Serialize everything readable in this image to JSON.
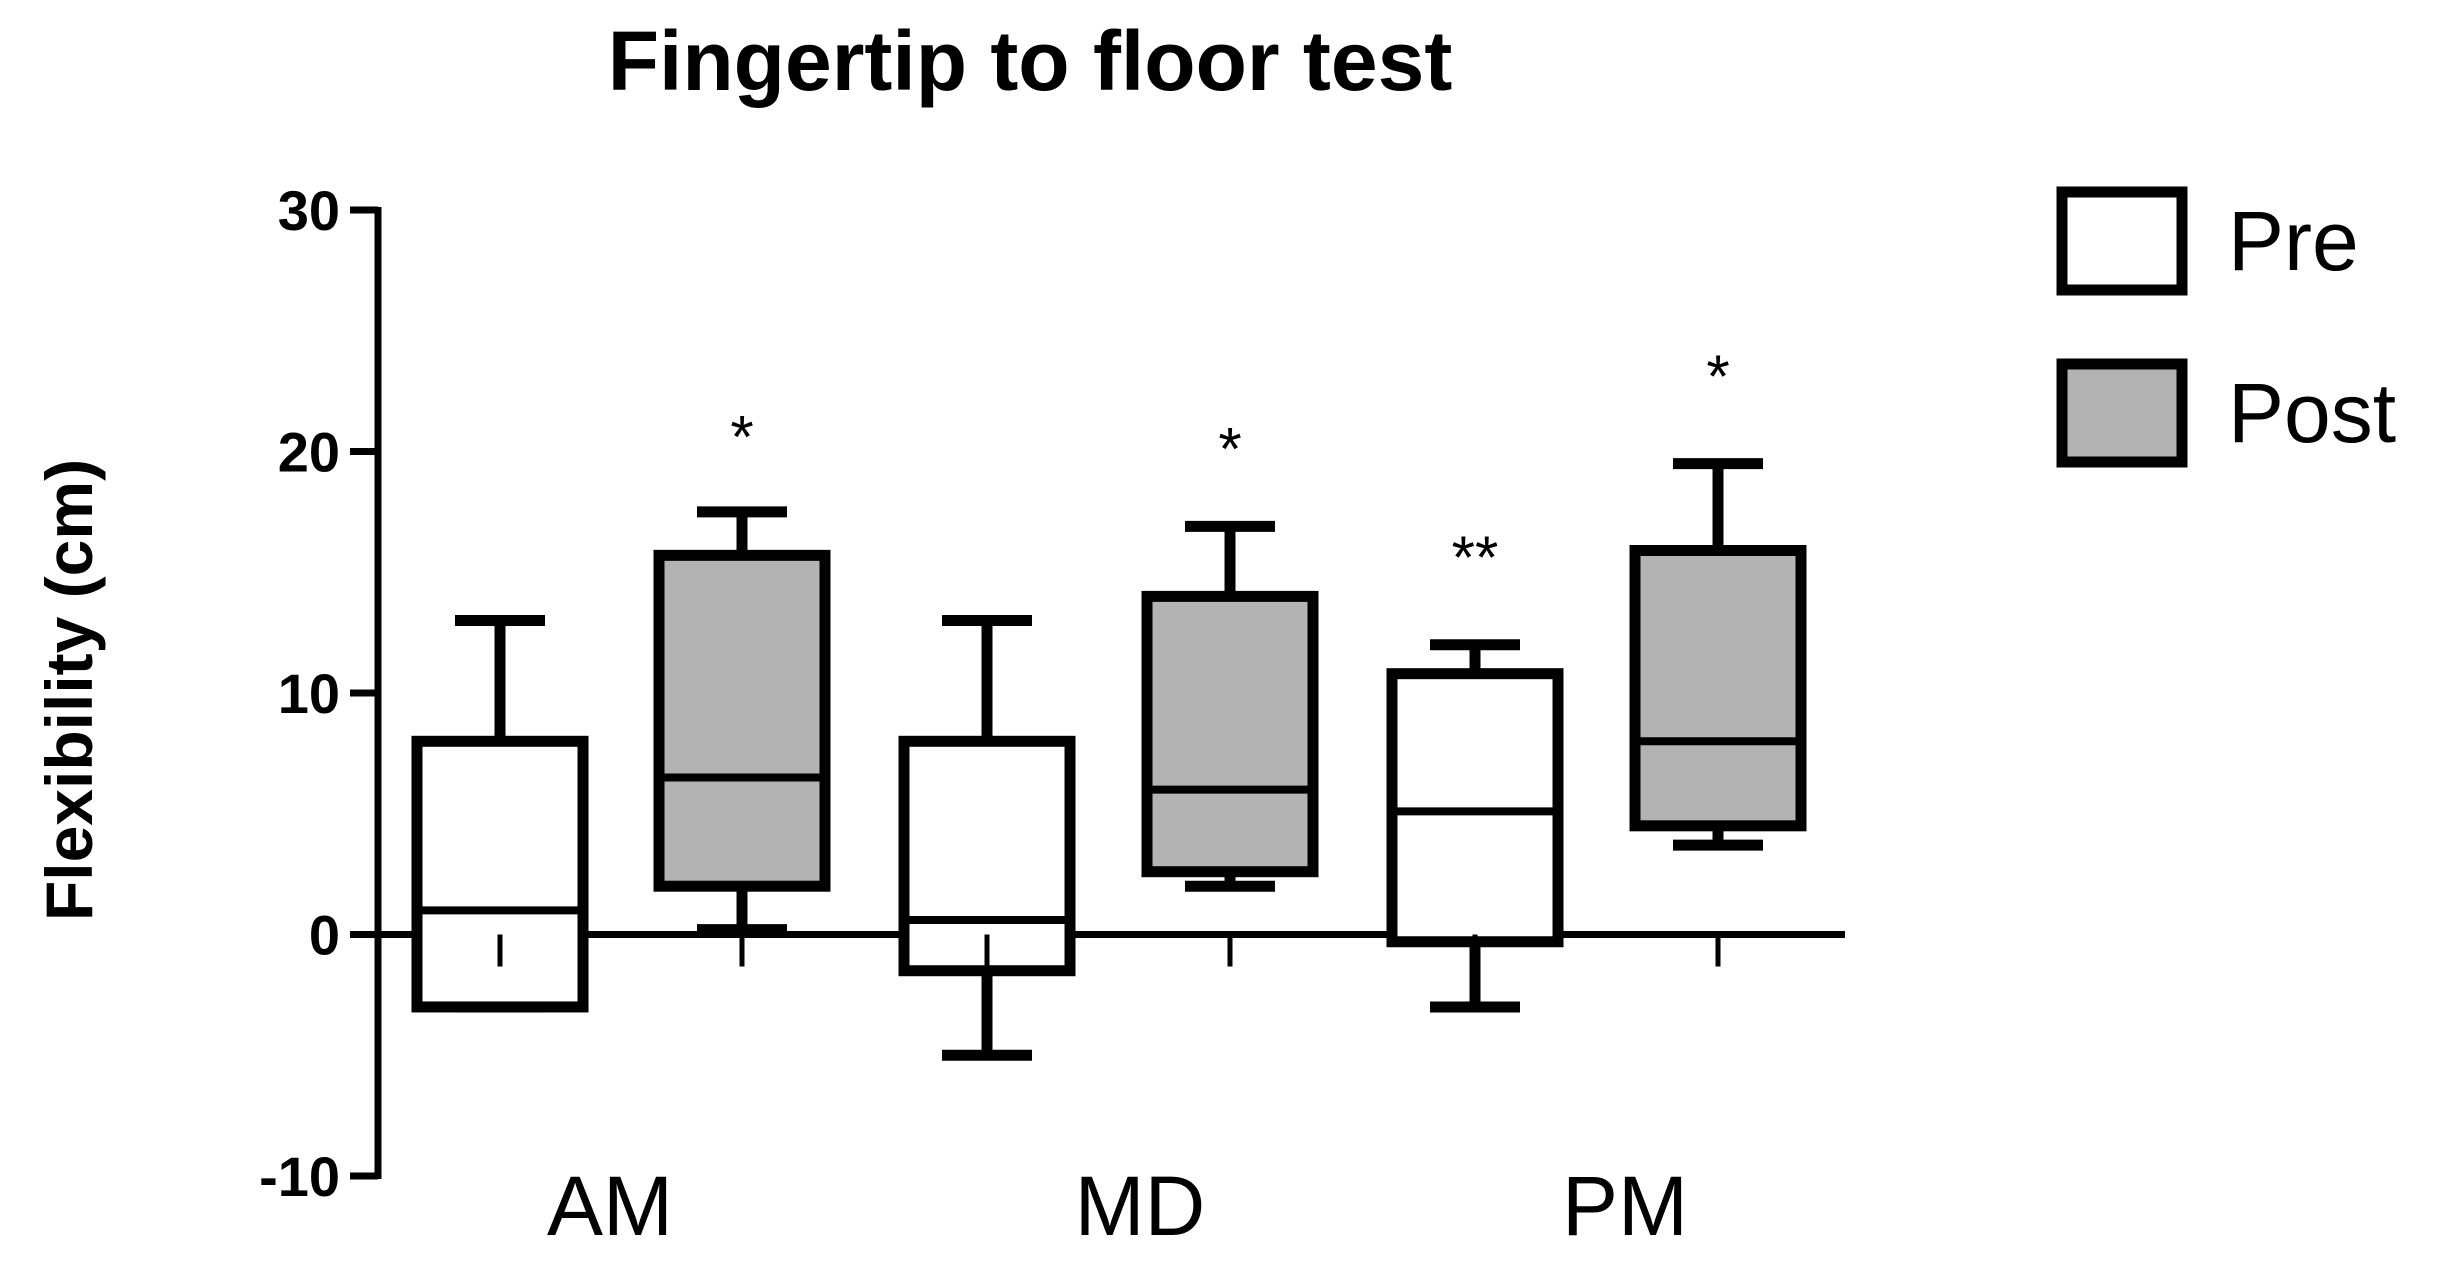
{
  "chart_data": {
    "type": "box",
    "title": "Fingertip to floor test",
    "xlabel": "",
    "ylabel": "Flexibility (cm)",
    "ylim": [
      -10,
      30
    ],
    "yticks": [
      -10,
      0,
      10,
      20,
      30
    ],
    "categories": [
      "AM",
      "MD",
      "PM"
    ],
    "legend_position": "top-right",
    "series": [
      {
        "name": "Pre",
        "color": "#ffffff",
        "boxes": [
          {
            "category": "AM",
            "min": -3,
            "q1": -3,
            "median": 1,
            "q3": 8,
            "max": 13
          },
          {
            "category": "MD",
            "min": -5,
            "q1": -1.5,
            "median": 0.6,
            "q3": 8,
            "max": 13
          },
          {
            "category": "PM",
            "min": -3,
            "q1": -0.3,
            "median": 5.1,
            "q3": 10.8,
            "max": 12
          }
        ]
      },
      {
        "name": "Post",
        "color": "#b3b3b3",
        "boxes": [
          {
            "category": "AM",
            "min": 0.2,
            "q1": 2,
            "median": 6.5,
            "q3": 15.7,
            "max": 17.5
          },
          {
            "category": "MD",
            "min": 2,
            "q1": 2.6,
            "median": 6,
            "q3": 14,
            "max": 16.9
          },
          {
            "category": "PM",
            "min": 3.7,
            "q1": 4.5,
            "median": 8,
            "q3": 15.9,
            "max": 19.5
          }
        ]
      }
    ],
    "annotations": [
      {
        "category": "AM",
        "series": "Post",
        "text": "*",
        "y": 21
      },
      {
        "category": "MD",
        "series": "Post",
        "text": "*",
        "y": 20.5
      },
      {
        "category": "PM",
        "series": "Pre",
        "text": "**",
        "y": 16
      },
      {
        "category": "PM",
        "series": "Post",
        "text": "*",
        "y": 23.5
      }
    ]
  }
}
